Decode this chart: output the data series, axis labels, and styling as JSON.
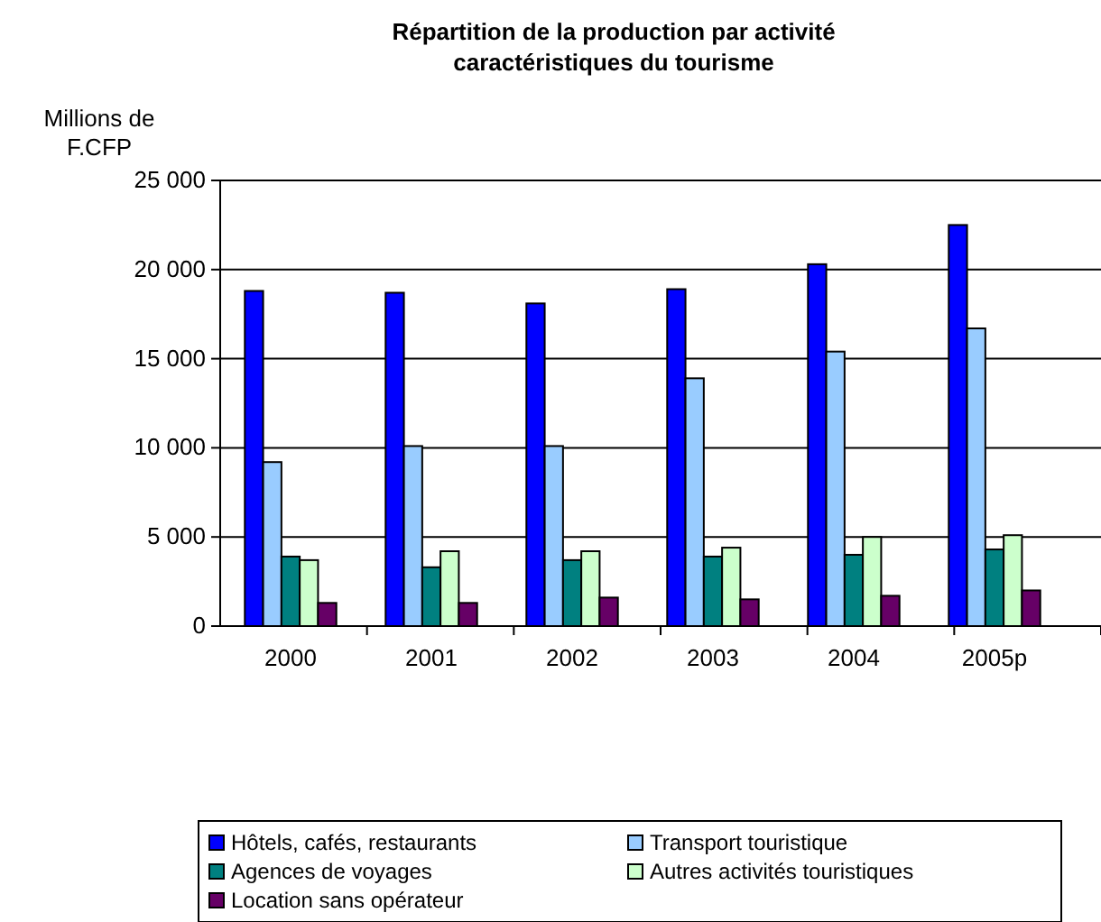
{
  "chart_data": {
    "type": "bar",
    "title": "Répartition de la production par activité caractéristiques du tourisme",
    "ylabel": "Millions de F.CFP",
    "categories": [
      "2000",
      "2001",
      "2002",
      "2003",
      "2004",
      "2005p"
    ],
    "series": [
      {
        "name": "Hôtels, cafés, restaurants",
        "color": "#0000ff",
        "values": [
          18800,
          18700,
          18100,
          18900,
          20300,
          22500
        ]
      },
      {
        "name": "Transport touristique",
        "color": "#99ccff",
        "values": [
          9200,
          10100,
          10100,
          13900,
          15400,
          16700
        ]
      },
      {
        "name": "Agences de voyages",
        "color": "#008080",
        "values": [
          3900,
          3300,
          3700,
          3900,
          4000,
          4300
        ]
      },
      {
        "name": "Autres activités touristiques",
        "color": "#ccffcc",
        "values": [
          3700,
          4200,
          4200,
          4400,
          5000,
          5100
        ]
      },
      {
        "name": "Location sans opérateur",
        "color": "#660066",
        "values": [
          1300,
          1300,
          1600,
          1500,
          1700,
          2000
        ]
      }
    ],
    "ylim": [
      0,
      25000
    ],
    "yticks": [
      0,
      {
        "value": 5000,
        "label": "5 000"
      },
      {
        "value": 10000,
        "label": "10 000"
      },
      {
        "value": 15000,
        "label": "15 000"
      },
      {
        "value": 20000,
        "label": "20 000"
      },
      {
        "value": 25000,
        "label": "25 000"
      }
    ],
    "grid": "y",
    "legend": "bottom"
  }
}
